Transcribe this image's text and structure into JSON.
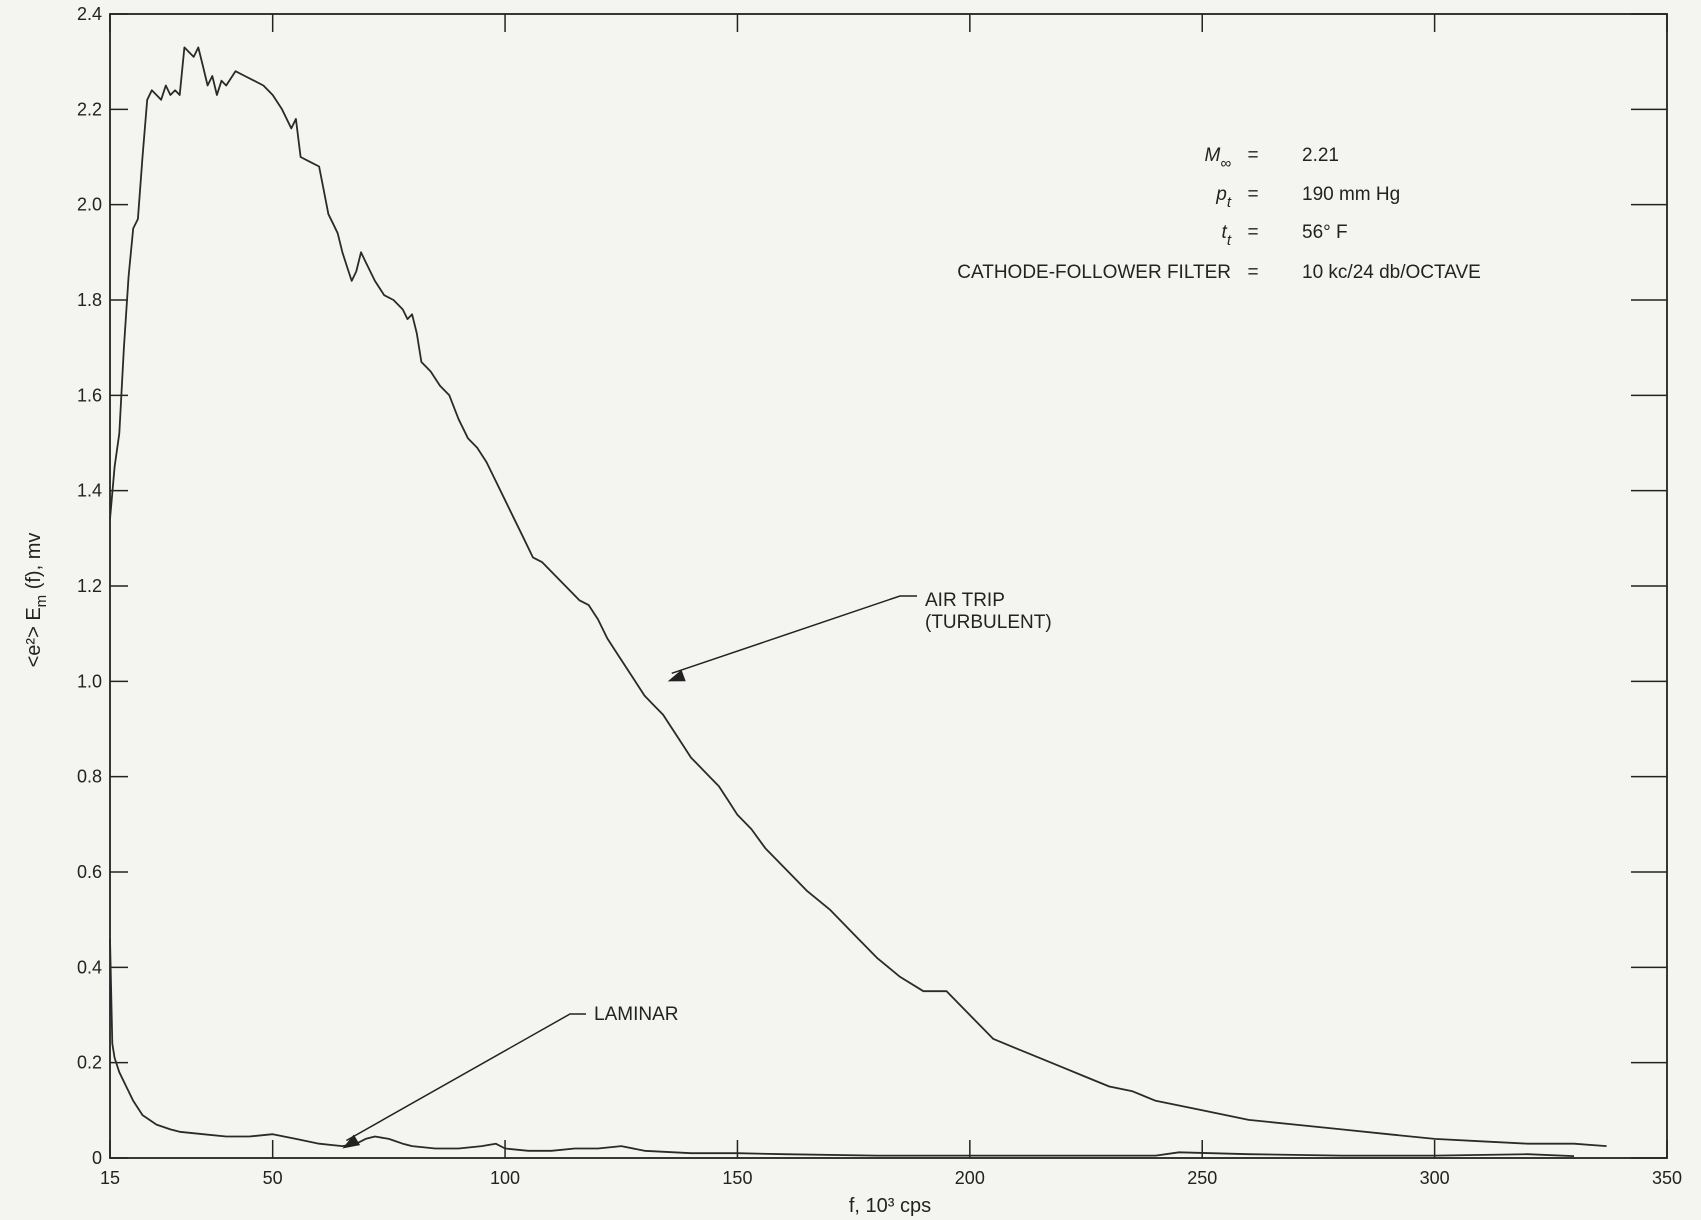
{
  "chart_data": {
    "type": "line",
    "xlabel": "f, 10³ cps",
    "ylabel": "<e²> E",
    "ylabel_sub": "m",
    "ylabel_tail": " (f), mv",
    "xlim": [
      15,
      350
    ],
    "ylim": [
      0,
      2.4
    ],
    "x_ticks": [
      15,
      50,
      100,
      150,
      200,
      250,
      300,
      350
    ],
    "y_ticks": [
      0,
      0.2,
      0.4,
      0.6,
      0.8,
      1.0,
      1.2,
      1.4,
      1.6,
      1.8,
      2.0,
      2.2,
      2.4
    ],
    "x_tick_labels": [
      "15",
      "50",
      "100",
      "150",
      "200",
      "250",
      "300",
      "350"
    ],
    "y_tick_labels": [
      "0",
      "0.2",
      "0.4",
      "0.6",
      "0.8",
      "1.0",
      "1.2",
      "1.4",
      "1.6",
      "1.8",
      "2.0",
      "2.2",
      "2.4"
    ],
    "grid": false,
    "conditions": [
      {
        "symbol": "M",
        "sub": "∞",
        "eq": "=",
        "value": "2.21"
      },
      {
        "symbol": "p",
        "sub": "t",
        "eq": "=",
        "value": "190 mm Hg"
      },
      {
        "symbol": "t",
        "sub": "t",
        "eq": "=",
        "value": "56° F"
      },
      {
        "symbol": "CATHODE-FOLLOWER FILTER",
        "sub": "",
        "eq": "=",
        "value": "10 kc/24 db/OCTAVE"
      }
    ],
    "series": [
      {
        "name": "AIR TRIP (TURBULENT)",
        "label_lines": [
          "AIR TRIP",
          "(TURBULENT)"
        ],
        "arrow_at": [
          135,
          1.0
        ],
        "x": [
          15,
          16,
          17,
          18,
          19,
          20,
          21,
          22,
          23,
          24,
          25,
          26,
          27,
          28,
          29,
          30,
          31,
          32,
          33,
          34,
          35,
          36,
          37,
          38,
          39,
          40,
          42,
          44,
          46,
          48,
          50,
          52,
          54,
          55,
          56,
          58,
          60,
          61,
          62,
          63,
          64,
          65,
          66,
          67,
          68,
          69,
          70,
          72,
          74,
          76,
          78,
          79,
          80,
          81,
          82,
          84,
          86,
          88,
          90,
          92,
          94,
          96,
          98,
          100,
          102,
          104,
          106,
          108,
          110,
          112,
          114,
          116,
          118,
          120,
          122,
          124,
          126,
          128,
          130,
          132,
          134,
          136,
          138,
          140,
          142,
          144,
          146,
          148,
          150,
          153,
          156,
          160,
          165,
          170,
          175,
          180,
          185,
          190,
          195,
          200,
          203,
          205,
          210,
          215,
          220,
          225,
          230,
          235,
          240,
          250,
          260,
          270,
          280,
          290,
          300,
          310,
          320,
          330,
          337
        ],
        "y": [
          1.34,
          1.45,
          1.52,
          1.7,
          1.85,
          1.95,
          1.97,
          2.1,
          2.22,
          2.24,
          2.23,
          2.22,
          2.25,
          2.23,
          2.24,
          2.23,
          2.33,
          2.32,
          2.31,
          2.33,
          2.29,
          2.25,
          2.27,
          2.23,
          2.26,
          2.25,
          2.28,
          2.27,
          2.26,
          2.25,
          2.23,
          2.2,
          2.16,
          2.18,
          2.1,
          2.09,
          2.08,
          2.03,
          1.98,
          1.96,
          1.94,
          1.9,
          1.87,
          1.84,
          1.86,
          1.9,
          1.88,
          1.84,
          1.81,
          1.8,
          1.78,
          1.76,
          1.77,
          1.73,
          1.67,
          1.65,
          1.62,
          1.6,
          1.55,
          1.51,
          1.49,
          1.46,
          1.42,
          1.38,
          1.34,
          1.3,
          1.26,
          1.25,
          1.23,
          1.21,
          1.19,
          1.17,
          1.16,
          1.13,
          1.09,
          1.06,
          1.03,
          1.0,
          0.97,
          0.95,
          0.93,
          0.9,
          0.87,
          0.84,
          0.82,
          0.8,
          0.78,
          0.75,
          0.72,
          0.69,
          0.65,
          0.61,
          0.56,
          0.52,
          0.47,
          0.42,
          0.38,
          0.35,
          0.35,
          0.3,
          0.27,
          0.25,
          0.23,
          0.21,
          0.19,
          0.17,
          0.15,
          0.14,
          0.12,
          0.1,
          0.08,
          0.07,
          0.06,
          0.05,
          0.04,
          0.035,
          0.03,
          0.03,
          0.025
        ]
      },
      {
        "name": "LAMINAR",
        "label_lines": [
          "LAMINAR"
        ],
        "arrow_at": [
          65,
          0.02
        ],
        "x": [
          15,
          15.5,
          16,
          17,
          18,
          20,
          22,
          25,
          28,
          30,
          35,
          40,
          45,
          50,
          55,
          60,
          65,
          68,
          70,
          72,
          75,
          78,
          80,
          85,
          90,
          95,
          98,
          100,
          105,
          110,
          115,
          120,
          125,
          130,
          140,
          150,
          160,
          180,
          200,
          220,
          240,
          245,
          260,
          280,
          300,
          320,
          330
        ],
        "y": [
          0.46,
          0.24,
          0.21,
          0.18,
          0.16,
          0.12,
          0.09,
          0.07,
          0.06,
          0.055,
          0.05,
          0.045,
          0.045,
          0.05,
          0.04,
          0.03,
          0.025,
          0.03,
          0.04,
          0.045,
          0.04,
          0.03,
          0.025,
          0.02,
          0.02,
          0.025,
          0.03,
          0.02,
          0.015,
          0.015,
          0.02,
          0.02,
          0.025,
          0.015,
          0.01,
          0.01,
          0.008,
          0.005,
          0.005,
          0.005,
          0.005,
          0.012,
          0.008,
          0.005,
          0.005,
          0.008,
          0.004
        ]
      }
    ]
  }
}
